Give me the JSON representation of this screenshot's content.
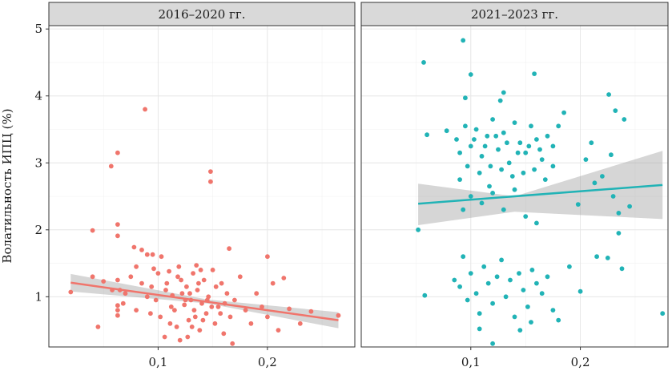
{
  "chart_data": {
    "type": "scatter",
    "ylabel": "Волатильность ИПЦ (%)",
    "xlabel": "",
    "xlim": [
      0.0,
      0.28
    ],
    "ylim": [
      0.25,
      5.05
    ],
    "x_ticks": [
      0.1,
      0.2
    ],
    "x_tick_labels": [
      "0,1",
      "0,2"
    ],
    "y_ticks": [
      1,
      2,
      3,
      4,
      5
    ],
    "y_tick_labels": [
      "1",
      "2",
      "3",
      "4",
      "5"
    ],
    "grid": true,
    "legend": "none",
    "panels": [
      {
        "title": "2016–2020 гг.",
        "color": "#F0756C",
        "trend": {
          "x": [
            0.02,
            0.265
          ],
          "y": [
            1.21,
            0.65
          ]
        },
        "ci_band": {
          "x": [
            0.02,
            0.145,
            0.265
          ],
          "upper": [
            1.34,
            0.96,
            0.77
          ],
          "lower": [
            1.08,
            0.9,
            0.53
          ]
        },
        "points": [
          [
            0.088,
            3.8
          ],
          [
            0.063,
            3.15
          ],
          [
            0.057,
            2.95
          ],
          [
            0.148,
            2.87
          ],
          [
            0.148,
            2.72
          ],
          [
            0.04,
            1.99
          ],
          [
            0.063,
            2.08
          ],
          [
            0.063,
            1.91
          ],
          [
            0.078,
            1.74
          ],
          [
            0.085,
            1.7
          ],
          [
            0.09,
            1.63
          ],
          [
            0.095,
            1.63
          ],
          [
            0.165,
            1.72
          ],
          [
            0.2,
            1.6
          ],
          [
            0.135,
            1.47
          ],
          [
            0.04,
            1.3
          ],
          [
            0.05,
            1.23
          ],
          [
            0.058,
            1.1
          ],
          [
            0.063,
            1.25
          ],
          [
            0.065,
            1.1
          ],
          [
            0.068,
            0.9
          ],
          [
            0.07,
            1.05
          ],
          [
            0.075,
            1.3
          ],
          [
            0.08,
            0.8
          ],
          [
            0.085,
            1.2
          ],
          [
            0.08,
            1.45
          ],
          [
            0.063,
            0.8
          ],
          [
            0.063,
            0.72
          ],
          [
            0.063,
            0.87
          ],
          [
            0.045,
            0.55
          ],
          [
            0.02,
            1.07
          ],
          [
            0.093,
            0.75
          ],
          [
            0.096,
            1.42
          ],
          [
            0.1,
            1.35
          ],
          [
            0.103,
            1.6
          ],
          [
            0.106,
            0.4
          ],
          [
            0.108,
            1.2
          ],
          [
            0.111,
            0.6
          ],
          [
            0.113,
            1.02
          ],
          [
            0.115,
            0.8
          ],
          [
            0.118,
            1.3
          ],
          [
            0.12,
            0.35
          ],
          [
            0.122,
            1.05
          ],
          [
            0.124,
            0.88
          ],
          [
            0.126,
            1.15
          ],
          [
            0.128,
            0.65
          ],
          [
            0.13,
            0.95
          ],
          [
            0.132,
            1.35
          ],
          [
            0.134,
            0.7
          ],
          [
            0.136,
            1.1
          ],
          [
            0.138,
            0.5
          ],
          [
            0.14,
            0.9
          ],
          [
            0.142,
            1.25
          ],
          [
            0.144,
            0.75
          ],
          [
            0.146,
            1.0
          ],
          [
            0.15,
            1.4
          ],
          [
            0.152,
            0.6
          ],
          [
            0.155,
            0.85
          ],
          [
            0.158,
            1.2
          ],
          [
            0.16,
            0.45
          ],
          [
            0.163,
            1.05
          ],
          [
            0.166,
            0.7
          ],
          [
            0.168,
            0.3
          ],
          [
            0.17,
            0.95
          ],
          [
            0.175,
            1.3
          ],
          [
            0.18,
            0.8
          ],
          [
            0.185,
            0.6
          ],
          [
            0.19,
            1.05
          ],
          [
            0.195,
            0.85
          ],
          [
            0.2,
            0.7
          ],
          [
            0.205,
            1.2
          ],
          [
            0.21,
            0.5
          ],
          [
            0.215,
            1.28
          ],
          [
            0.22,
            0.82
          ],
          [
            0.23,
            0.6
          ],
          [
            0.24,
            0.78
          ],
          [
            0.265,
            0.72
          ],
          [
            0.098,
            0.95
          ],
          [
            0.102,
            0.7
          ],
          [
            0.107,
            1.1
          ],
          [
            0.112,
            0.85
          ],
          [
            0.117,
            0.55
          ],
          [
            0.121,
            1.25
          ],
          [
            0.125,
            0.95
          ],
          [
            0.129,
            1.05
          ],
          [
            0.133,
            0.8
          ],
          [
            0.137,
            1.2
          ],
          [
            0.141,
            0.65
          ],
          [
            0.145,
            0.95
          ],
          [
            0.149,
            0.85
          ],
          [
            0.153,
            1.15
          ],
          [
            0.157,
            0.75
          ],
          [
            0.161,
            0.9
          ],
          [
            0.09,
            1.0
          ],
          [
            0.094,
            1.15
          ],
          [
            0.11,
            1.38
          ],
          [
            0.119,
            1.45
          ],
          [
            0.127,
            0.4
          ],
          [
            0.131,
            0.55
          ],
          [
            0.139,
            1.4
          ]
        ]
      },
      {
        "title": "2021–2023 гг.",
        "color": "#21B3B6",
        "trend": {
          "x": [
            0.052,
            0.275
          ],
          "y": [
            2.39,
            2.67
          ]
        },
        "ci_band": {
          "x": [
            0.052,
            0.14,
            0.275
          ],
          "upper": [
            2.69,
            2.5,
            3.18
          ],
          "lower": [
            2.07,
            2.27,
            2.16
          ]
        },
        "points": [
          [
            0.093,
            4.83
          ],
          [
            0.057,
            4.5
          ],
          [
            0.158,
            4.33
          ],
          [
            0.1,
            4.32
          ],
          [
            0.13,
            4.05
          ],
          [
            0.095,
            3.97
          ],
          [
            0.127,
            3.93
          ],
          [
            0.226,
            4.02
          ],
          [
            0.232,
            3.78
          ],
          [
            0.24,
            3.65
          ],
          [
            0.185,
            3.75
          ],
          [
            0.06,
            3.42
          ],
          [
            0.078,
            3.48
          ],
          [
            0.087,
            3.35
          ],
          [
            0.095,
            3.55
          ],
          [
            0.1,
            3.25
          ],
          [
            0.105,
            3.5
          ],
          [
            0.11,
            3.1
          ],
          [
            0.115,
            3.4
          ],
          [
            0.12,
            3.65
          ],
          [
            0.125,
            3.2
          ],
          [
            0.13,
            3.45
          ],
          [
            0.135,
            3.0
          ],
          [
            0.14,
            3.6
          ],
          [
            0.145,
            3.3
          ],
          [
            0.15,
            3.15
          ],
          [
            0.155,
            3.55
          ],
          [
            0.16,
            3.35
          ],
          [
            0.165,
            3.05
          ],
          [
            0.17,
            3.4
          ],
          [
            0.175,
            3.25
          ],
          [
            0.18,
            3.55
          ],
          [
            0.09,
            3.15
          ],
          [
            0.097,
            2.95
          ],
          [
            0.103,
            3.35
          ],
          [
            0.108,
            2.85
          ],
          [
            0.113,
            3.25
          ],
          [
            0.118,
            2.95
          ],
          [
            0.123,
            3.4
          ],
          [
            0.128,
            2.9
          ],
          [
            0.133,
            3.3
          ],
          [
            0.138,
            2.8
          ],
          [
            0.143,
            3.15
          ],
          [
            0.148,
            2.85
          ],
          [
            0.153,
            3.25
          ],
          [
            0.158,
            2.9
          ],
          [
            0.163,
            3.2
          ],
          [
            0.168,
            2.75
          ],
          [
            0.175,
            2.95
          ],
          [
            0.205,
            3.05
          ],
          [
            0.21,
            3.3
          ],
          [
            0.213,
            2.7
          ],
          [
            0.22,
            2.8
          ],
          [
            0.228,
            3.12
          ],
          [
            0.23,
            2.5
          ],
          [
            0.235,
            2.25
          ],
          [
            0.245,
            2.35
          ],
          [
            0.198,
            2.38
          ],
          [
            0.052,
            2.0
          ],
          [
            0.09,
            2.75
          ],
          [
            0.1,
            2.5
          ],
          [
            0.11,
            2.4
          ],
          [
            0.12,
            2.55
          ],
          [
            0.13,
            2.3
          ],
          [
            0.14,
            2.6
          ],
          [
            0.15,
            2.2
          ],
          [
            0.16,
            2.1
          ],
          [
            0.093,
            2.3
          ],
          [
            0.117,
            2.65
          ],
          [
            0.19,
            1.45
          ],
          [
            0.235,
            1.95
          ],
          [
            0.215,
            1.6
          ],
          [
            0.225,
            1.58
          ],
          [
            0.238,
            1.42
          ],
          [
            0.058,
            1.02
          ],
          [
            0.085,
            1.25
          ],
          [
            0.09,
            1.15
          ],
          [
            0.093,
            1.6
          ],
          [
            0.097,
            0.95
          ],
          [
            0.1,
            1.35
          ],
          [
            0.105,
            1.05
          ],
          [
            0.108,
            0.75
          ],
          [
            0.112,
            1.45
          ],
          [
            0.116,
            1.2
          ],
          [
            0.12,
            0.9
          ],
          [
            0.124,
            1.3
          ],
          [
            0.128,
            1.55
          ],
          [
            0.132,
            1.0
          ],
          [
            0.136,
            1.25
          ],
          [
            0.14,
            0.7
          ],
          [
            0.144,
            1.35
          ],
          [
            0.148,
            1.1
          ],
          [
            0.152,
            0.85
          ],
          [
            0.156,
            1.4
          ],
          [
            0.16,
            1.2
          ],
          [
            0.165,
            1.05
          ],
          [
            0.17,
            1.3
          ],
          [
            0.175,
            0.8
          ],
          [
            0.108,
            0.52
          ],
          [
            0.12,
            0.3
          ],
          [
            0.145,
            0.5
          ],
          [
            0.155,
            0.62
          ],
          [
            0.18,
            0.65
          ],
          [
            0.2,
            1.08
          ],
          [
            0.275,
            0.75
          ]
        ]
      }
    ]
  }
}
